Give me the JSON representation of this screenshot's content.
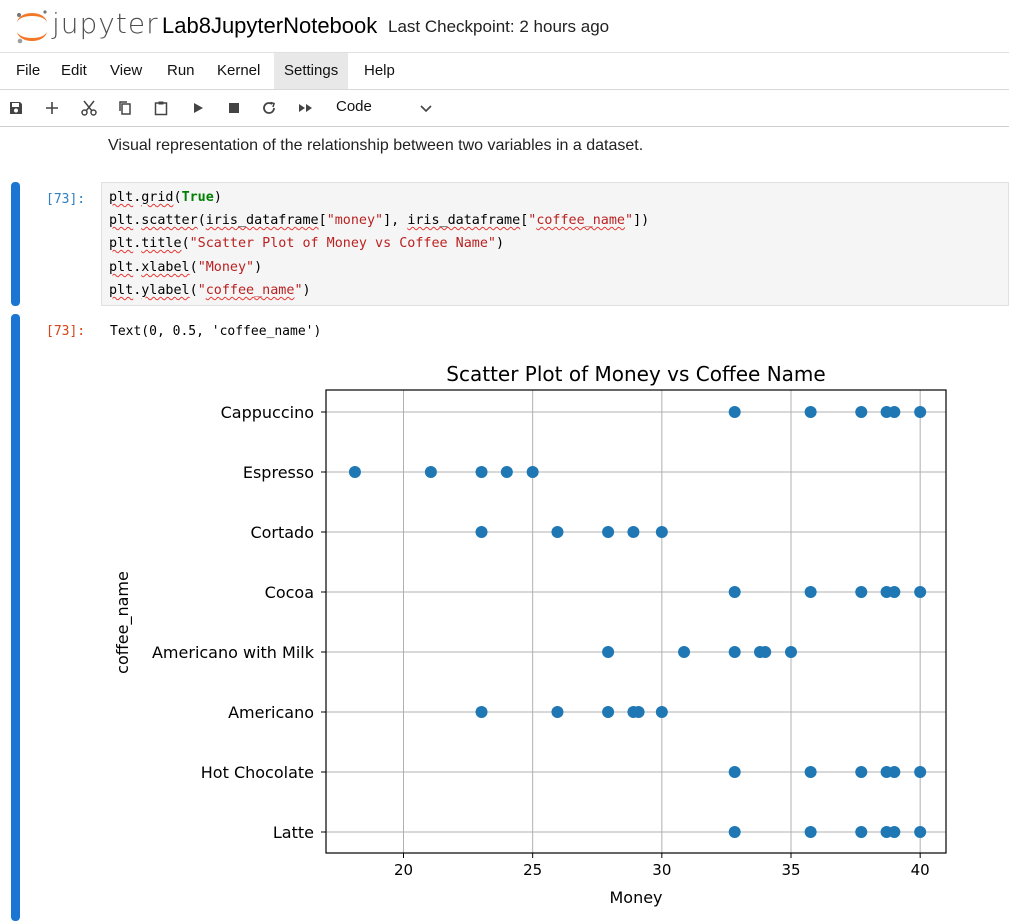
{
  "header": {
    "brand": "jupyter",
    "notebook_title": "Lab8JupyterNotebook",
    "checkpoint": "Last Checkpoint: 2 hours ago"
  },
  "menu": [
    "File",
    "Edit",
    "View",
    "Run",
    "Kernel",
    "Settings",
    "Help"
  ],
  "menu_active": "Settings",
  "toolbar": {
    "cell_type": "Code",
    "icons": [
      "save-icon",
      "add-cell-icon",
      "cut-icon",
      "copy-icon",
      "paste-icon",
      "run-icon",
      "stop-icon",
      "restart-icon",
      "fast-forward-icon",
      "chevron-down-icon"
    ]
  },
  "markdown_text": "Visual representation of the relationship between two variables in a dataset.",
  "cell": {
    "in_prompt": "[73]:",
    "out_prompt": "[73]:",
    "output_text": "Text(0, 0.5, 'coffee_name')"
  },
  "colors": {
    "accent": "#1a76d2",
    "marker": "#1f77b4"
  },
  "chart_data": {
    "type": "scatter",
    "title": "Scatter Plot of Money vs Coffee Name",
    "xlabel": "Money",
    "ylabel": "coffee_name",
    "xlim": [
      17,
      41
    ],
    "xticks": [
      20,
      25,
      30,
      35,
      40
    ],
    "categories": [
      "Latte",
      "Hot Chocolate",
      "Americano",
      "Americano with Milk",
      "Cocoa",
      "Cortado",
      "Espresso",
      "Cappuccino"
    ],
    "grid": true,
    "points": [
      {
        "category": "Cappuccino",
        "x": [
          32.82,
          35.76,
          37.72,
          38.7,
          39.0,
          40.0
        ]
      },
      {
        "category": "Espresso",
        "x": [
          18.12,
          21.06,
          23.02,
          24.0,
          25.0
        ]
      },
      {
        "category": "Cortado",
        "x": [
          23.02,
          25.96,
          27.92,
          28.9,
          30.0
        ]
      },
      {
        "category": "Cocoa",
        "x": [
          32.82,
          35.76,
          37.72,
          38.7,
          39.0,
          40.0
        ]
      },
      {
        "category": "Americano with Milk",
        "x": [
          27.92,
          30.86,
          32.82,
          33.8,
          34.0,
          35.0
        ]
      },
      {
        "category": "Americano",
        "x": [
          23.02,
          25.96,
          27.92,
          28.9,
          29.1,
          30.0
        ]
      },
      {
        "category": "Hot Chocolate",
        "x": [
          32.82,
          35.76,
          37.72,
          38.7,
          39.0,
          40.0
        ]
      },
      {
        "category": "Latte",
        "x": [
          32.82,
          35.76,
          37.72,
          38.7,
          39.0,
          40.0
        ]
      }
    ]
  }
}
